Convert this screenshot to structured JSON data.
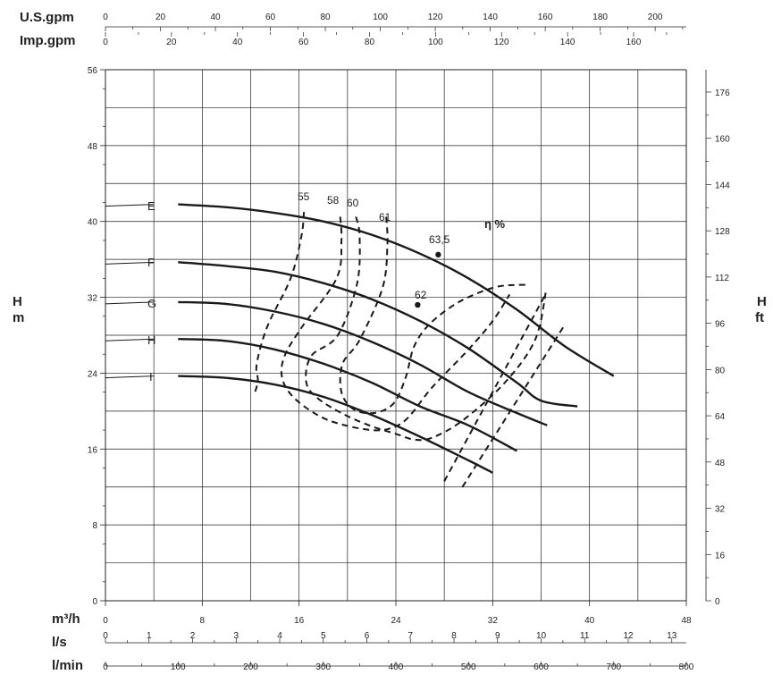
{
  "chart_data": {
    "type": "line",
    "title": "",
    "axes": {
      "us_gpm": {
        "label": "U.S.gpm",
        "ticks": [
          "0",
          "20",
          "40",
          "60",
          "80",
          "100",
          "120",
          "140",
          "160",
          "180",
          "200"
        ]
      },
      "imp_gpm": {
        "label": "Imp.gpm",
        "ticks": [
          "0",
          "20",
          "40",
          "60",
          "80",
          "100",
          "120",
          "140",
          "160"
        ]
      },
      "m3h": {
        "label": "m³/h",
        "ticks": [
          "0",
          "8",
          "16",
          "24",
          "32",
          "40",
          "48"
        ],
        "range": [
          0,
          48
        ]
      },
      "ls": {
        "label": "l/s",
        "ticks": [
          "0",
          "1",
          "2",
          "3",
          "4",
          "5",
          "6",
          "7",
          "8",
          "9",
          "10",
          "11",
          "12",
          "13"
        ]
      },
      "lmin": {
        "label": "l/min",
        "ticks": [
          "0",
          "100",
          "200",
          "300",
          "400",
          "500",
          "600",
          "700",
          "800"
        ]
      },
      "head_m": {
        "label_top": "H",
        "label_bottom": "m",
        "ticks": [
          "0",
          "8",
          "16",
          "24",
          "32",
          "40",
          "48",
          "56"
        ],
        "range": [
          0,
          56
        ]
      },
      "head_ft": {
        "label_top": "H",
        "label_bottom": "ft",
        "ticks": [
          "0",
          "16",
          "32",
          "48",
          "64",
          "80",
          "96",
          "112",
          "128",
          "144",
          "160",
          "176"
        ]
      }
    },
    "grid": true,
    "series": [
      {
        "name": "E",
        "x": [
          6,
          10,
          14,
          18,
          22,
          26,
          30,
          34,
          38,
          42
        ],
        "y": [
          41.8,
          41.5,
          40.9,
          40.0,
          38.6,
          36.6,
          34.0,
          30.7,
          26.8,
          23.7
        ]
      },
      {
        "name": "F",
        "x": [
          6,
          10,
          14,
          18,
          22,
          26,
          30,
          34,
          36,
          39
        ],
        "y": [
          35.7,
          35.3,
          34.7,
          33.5,
          31.8,
          29.5,
          26.6,
          23.0,
          21.1,
          20.5
        ]
      },
      {
        "name": "G",
        "x": [
          6,
          10,
          14,
          18,
          22,
          26,
          30,
          34,
          36.5
        ],
        "y": [
          31.5,
          31.3,
          30.5,
          29.2,
          27.3,
          24.9,
          22.0,
          19.8,
          18.5
        ]
      },
      {
        "name": "H",
        "x": [
          6,
          10,
          14,
          18,
          22,
          26,
          30,
          34
        ],
        "y": [
          27.6,
          27.4,
          26.5,
          25.0,
          23.0,
          20.5,
          18.5,
          15.8
        ]
      },
      {
        "name": "I",
        "x": [
          6,
          10,
          14,
          18,
          22,
          26,
          30,
          32
        ],
        "y": [
          23.7,
          23.5,
          22.8,
          21.5,
          19.6,
          17.3,
          14.8,
          13.5
        ]
      }
    ],
    "efficiency": {
      "label": "η %",
      "contours": [
        {
          "name": "55",
          "x": [
            16.4,
            16.2,
            15.3,
            13.4,
            12.5,
            12.6,
            12.3
          ],
          "y": [
            41.0,
            38.5,
            34.0,
            29.0,
            25.0,
            23.2,
            21.8
          ]
        },
        {
          "name": "58",
          "x": [
            19.4,
            19.5,
            19.1,
            16.2,
            14.8,
            14.6,
            15.5,
            17.5,
            19.5,
            22.0,
            23.6,
            25.0,
            27.0,
            30.0,
            32.0,
            33.4
          ],
          "y": [
            40.5,
            38.0,
            34.0,
            28.8,
            25.8,
            23.5,
            21.5,
            19.6,
            18.6,
            18.0,
            18.2,
            19.3,
            22.5,
            26.5,
            29.5,
            32.3
          ]
        },
        {
          "name": "60",
          "x": [
            20.7,
            21.0,
            20.8,
            19.2,
            17.0,
            16.6,
            17.6,
            19.8,
            22.0,
            24.0,
            25.5,
            27.0,
            29.5,
            33.0,
            35.5,
            36.4
          ],
          "y": [
            40.5,
            38.5,
            33.5,
            28.0,
            25.8,
            23.0,
            21.3,
            19.6,
            18.4,
            17.6,
            17.0,
            17.2,
            19.0,
            23.0,
            27.5,
            32.6
          ]
        },
        {
          "name": "61",
          "x": [
            23.2,
            23.3,
            22.9,
            21.0,
            19.6,
            19.5,
            20.5,
            22.2,
            23.8,
            24.8,
            25.5,
            26.8,
            29.2,
            32.0,
            33.8,
            35.0
          ],
          "y": [
            40.5,
            37.5,
            33.0,
            27.5,
            25.0,
            22.0,
            20.2,
            19.8,
            20.8,
            23.5,
            26.8,
            29.2,
            31.5,
            33.0,
            33.3,
            33.3
          ]
        },
        {
          "name": "62",
          "x": [
            25.8
          ],
          "y": [
            31.2
          ]
        },
        {
          "name": "63,5",
          "x": [
            27.5
          ],
          "y": [
            36.5
          ]
        }
      ]
    }
  },
  "labels": {
    "us_gpm": "U.S.gpm",
    "imp_gpm": "Imp.gpm",
    "m3h": "m³/h",
    "ls": "l/s",
    "lmin": "l/min",
    "h_left": "H",
    "m_left": "m",
    "h_right": "H",
    "ft_right": "ft",
    "eta": "η %",
    "curve_e": "E",
    "curve_f": "F",
    "curve_g": "G",
    "curve_h": "H",
    "curve_i": "I",
    "eff_55": "55",
    "eff_58": "58",
    "eff_60": "60",
    "eff_61": "61",
    "eff_62": "62",
    "eff_63": "63,5"
  }
}
